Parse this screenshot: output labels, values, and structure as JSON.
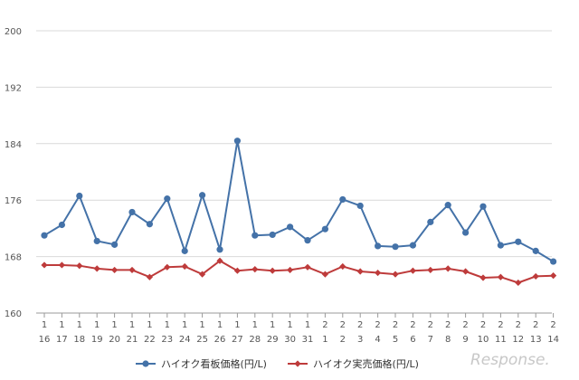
{
  "chart_data": {
    "type": "line",
    "categories": [
      [
        "1",
        "16"
      ],
      [
        "1",
        "17"
      ],
      [
        "1",
        "18"
      ],
      [
        "1",
        "19"
      ],
      [
        "1",
        "20"
      ],
      [
        "1",
        "21"
      ],
      [
        "1",
        "22"
      ],
      [
        "1",
        "23"
      ],
      [
        "1",
        "24"
      ],
      [
        "1",
        "25"
      ],
      [
        "1",
        "26"
      ],
      [
        "1",
        "27"
      ],
      [
        "1",
        "28"
      ],
      [
        "1",
        "29"
      ],
      [
        "1",
        "30"
      ],
      [
        "1",
        "31"
      ],
      [
        "2",
        "1"
      ],
      [
        "2",
        "2"
      ],
      [
        "2",
        "3"
      ],
      [
        "2",
        "4"
      ],
      [
        "2",
        "5"
      ],
      [
        "2",
        "6"
      ],
      [
        "2",
        "7"
      ],
      [
        "2",
        "8"
      ],
      [
        "2",
        "9"
      ],
      [
        "2",
        "10"
      ],
      [
        "2",
        "11"
      ],
      [
        "2",
        "12"
      ],
      [
        "2",
        "13"
      ],
      [
        "2",
        "14"
      ]
    ],
    "ylim": [
      160,
      200
    ],
    "yticks": [
      "160",
      "168",
      "176",
      "184",
      "192",
      "200"
    ],
    "grid": true,
    "legend_position": "bottom",
    "series": [
      {
        "name": "ハイオク看板価格(円/L)",
        "color": "#4472a8",
        "marker": "circle",
        "values": [
          171.0,
          172.5,
          176.6,
          170.2,
          169.7,
          174.3,
          172.6,
          176.2,
          168.8,
          176.7,
          169.0,
          184.4,
          171.0,
          171.1,
          172.2,
          170.3,
          171.9,
          176.1,
          175.2,
          169.5,
          169.4,
          169.6,
          172.9,
          175.3,
          171.4,
          175.1,
          169.6,
          170.1,
          168.8,
          167.3
        ]
      },
      {
        "name": "ハイオク実売価格(円/L)",
        "color": "#be3b3b",
        "marker": "diamond",
        "values": [
          166.8,
          166.8,
          166.7,
          166.3,
          166.1,
          166.1,
          165.1,
          166.5,
          166.6,
          165.5,
          167.4,
          166.0,
          166.2,
          166.0,
          166.1,
          166.5,
          165.5,
          166.6,
          165.9,
          165.7,
          165.5,
          166.0,
          166.1,
          166.3,
          165.9,
          165.0,
          165.1,
          164.3,
          165.2,
          165.3
        ]
      }
    ]
  },
  "watermark_text": "Response."
}
